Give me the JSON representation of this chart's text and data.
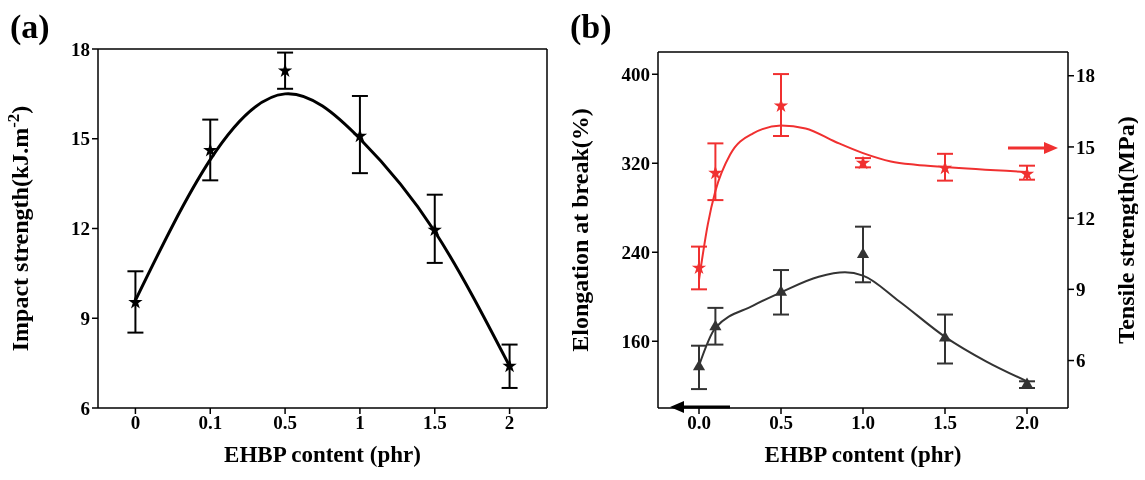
{
  "chart_data": [
    {
      "type": "scatter",
      "title": "(a)",
      "xlabel": "EHBP content (phr)",
      "ylabel": "Impact strength(kJ.m$^{-2}$)",
      "categories": [
        "0",
        "0.1",
        "0.5",
        "1",
        "1.5",
        "2"
      ],
      "ylim": [
        6,
        18
      ],
      "yticks": [
        6,
        9,
        12,
        15,
        18
      ],
      "series": [
        {
          "type": "line",
          "color": "#000000",
          "values": [
            9.6,
            14.3,
            16.5,
            15.0,
            11.9,
            7.4
          ]
        },
        {
          "type": "scatter",
          "color": "#000000",
          "marker": "star",
          "values": [
            9.53,
            14.61,
            17.27,
            15.09,
            11.95,
            7.4
          ],
          "errors": [
            [
              8.52,
              10.57
            ],
            [
              13.61,
              15.64
            ],
            [
              16.67,
              17.88
            ],
            [
              13.85,
              16.43
            ],
            [
              10.85,
              13.13
            ],
            [
              6.67,
              8.12
            ]
          ]
        }
      ]
    },
    {
      "type": "scatter",
      "title": "(b)",
      "xlabel": "EHBP content (phr)",
      "ylabel": "Elongation at break(%)",
      "y2label": "Tensile strength(MPa)",
      "xlim": [
        -0.25,
        2.25
      ],
      "xticks": [
        {
          "value": 0,
          "label": "0.0"
        },
        0.5,
        {
          "value": 1,
          "label": "1.0"
        },
        1.5,
        {
          "value": 2,
          "label": "2.0"
        }
      ],
      "ylim": [
        100,
        420
      ],
      "yticks": [
        160,
        240,
        320,
        400
      ],
      "y2lim": [
        4,
        19
      ],
      "y2ticks": [
        6,
        9,
        12,
        15,
        18
      ],
      "series": [
        {
          "type": "line",
          "axis": "y2",
          "color": "#f03030",
          "x": [
            0,
            0.054,
            0.1,
            0.19,
            0.33,
            0.5,
            0.65,
            0.83,
            1.0,
            1.17,
            1.32,
            1.5,
            2.0
          ],
          "values": [
            9.4,
            11.75,
            13.14,
            14.68,
            15.57,
            15.9,
            15.78,
            15.22,
            14.74,
            14.39,
            14.25,
            14.15,
            13.94
          ]
        },
        {
          "type": "scatter",
          "axis": "y2",
          "color": "#f03030",
          "marker": "star",
          "x": [
            0,
            0.1,
            0.5,
            1,
            1.5,
            2
          ],
          "values": [
            9.9,
            13.9,
            16.73,
            14.32,
            14.11,
            13.86
          ],
          "errors": [
            [
              9.0,
              10.8
            ],
            [
              12.76,
              15.15
            ],
            [
              15.46,
              18.07
            ],
            [
              14.14,
              14.53
            ],
            [
              13.58,
              14.71
            ],
            [
              13.62,
              14.21
            ]
          ]
        },
        {
          "type": "line",
          "color": "#333333",
          "x": [
            0,
            0.1,
            0.33,
            0.5,
            0.73,
            0.89,
            1.0,
            1.22,
            1.5,
            1.75,
            2.0
          ],
          "values": [
            138,
            172,
            192,
            204,
            218,
            222,
            219,
            196,
            164,
            142,
            124
          ]
        },
        {
          "type": "scatter",
          "color": "#333333",
          "marker": "triangle",
          "x": [
            0,
            0.1,
            0.5,
            1,
            1.5,
            2
          ],
          "values": [
            137,
            173,
            204,
            238,
            163,
            121
          ],
          "errors": [
            [
              117,
              156
            ],
            [
              157,
              190
            ],
            [
              184,
              224
            ],
            [
              213,
              263
            ],
            [
              140,
              184
            ],
            [
              118,
              124
            ]
          ]
        }
      ]
    }
  ]
}
